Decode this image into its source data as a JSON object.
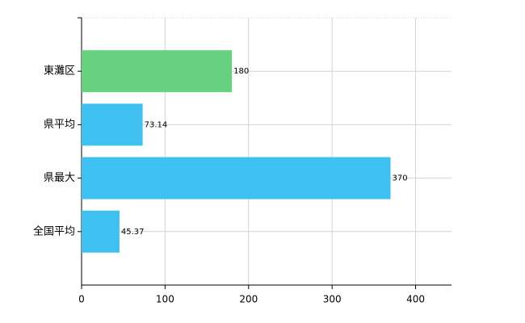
{
  "chart_data": {
    "type": "bar",
    "orientation": "horizontal",
    "categories": [
      "東灘区",
      "県平均",
      "県最大",
      "全国平均"
    ],
    "values": [
      180,
      73.14,
      370,
      45.37
    ],
    "colors": [
      "#66d17f",
      "#3ec0f0",
      "#3ec0f0",
      "#3ec0f0"
    ],
    "xlim": [
      0,
      443
    ],
    "xticks": [
      0,
      100,
      200,
      300,
      400
    ],
    "grid": true
  }
}
